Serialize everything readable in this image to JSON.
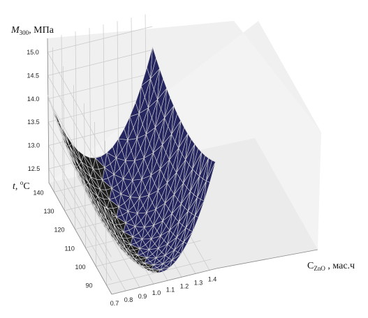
{
  "chart_data": {
    "type": "surface3d",
    "title": "",
    "zlabel": {
      "symbol": "M",
      "sub": "300",
      "unit": ", МПа"
    },
    "ylabel": {
      "symbol": "t",
      "unit": ", ",
      "sup": "o",
      "unit2": "C"
    },
    "xlabel": {
      "symbol": "C",
      "sub": "ZnO",
      "unit": " , мас.ч"
    },
    "x_ticks": [
      "0.7",
      "0.8",
      "0.9",
      "1.0",
      "1.1",
      "1.2",
      "1.3",
      "1.4"
    ],
    "y_ticks": [
      "90",
      "100",
      "110",
      "120",
      "130",
      "140"
    ],
    "z_ticks": [
      "12.5",
      "13.0",
      "13.5",
      "14.0",
      "14.5",
      "15.0"
    ],
    "xlim": [
      0.7,
      1.45
    ],
    "ylim": [
      85,
      145
    ],
    "zlim": [
      12.2,
      15.3
    ],
    "surface": {
      "description_points": [
        {
          "x": 0.7,
          "y": 145,
          "z": 15.1
        },
        {
          "x": 0.7,
          "y": 85,
          "z": 13.9
        },
        {
          "x": 1.45,
          "y": 145,
          "z": 15.35
        },
        {
          "x": 1.45,
          "y": 85,
          "z": 13.6
        },
        {
          "x": 1.05,
          "y": 115,
          "z": 12.0
        }
      ],
      "model": {
        "x0": 1.05,
        "y0": 115,
        "z0": 11.95,
        "ax": 13.0,
        "ay": 0.00055,
        "by": 0.012
      }
    },
    "colors": {
      "left_face": "#1f1f1f",
      "right_face": "#25255f",
      "mesh": "#d8d8d8",
      "pane": "#f0f0f0",
      "grid": "#c8c8c8"
    },
    "grid": true
  }
}
